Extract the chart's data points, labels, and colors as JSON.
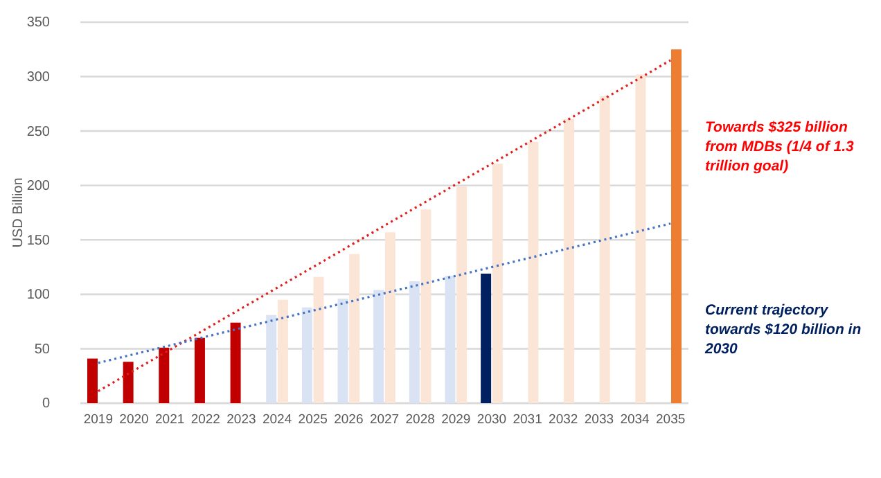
{
  "chart_data": {
    "type": "bar",
    "ylabel": "USD Billion",
    "categories": [
      "2019",
      "2020",
      "2021",
      "2022",
      "2023",
      "2024",
      "2025",
      "2026",
      "2027",
      "2028",
      "2029",
      "2030",
      "2031",
      "2032",
      "2033",
      "2034",
      "2035"
    ],
    "series": [
      {
        "colors": [
          "#c00000",
          "#c00000",
          "#c00000",
          "#c00000",
          "#c00000",
          "#dae3f3",
          "#dae3f3",
          "#dae3f3",
          "#dae3f3",
          "#dae3f3",
          "#dae3f3",
          "#002060",
          null,
          null,
          null,
          null,
          null
        ],
        "values": [
          41,
          38,
          51,
          60,
          74,
          81,
          88,
          96,
          104,
          112,
          117,
          119,
          null,
          null,
          null,
          null,
          null
        ]
      },
      {
        "colors": [
          null,
          null,
          null,
          null,
          null,
          "#fbe5d6",
          "#fbe5d6",
          "#fbe5d6",
          "#fbe5d6",
          "#fbe5d6",
          "#fbe5d6",
          "#fbe5d6",
          "#fbe5d6",
          "#fbe5d6",
          "#fbe5d6",
          "#fbe5d6",
          "#ed7d31"
        ],
        "values": [
          null,
          null,
          null,
          null,
          null,
          95,
          116,
          137,
          157,
          178,
          199,
          220,
          240,
          261,
          282,
          302,
          325
        ]
      },
      {
        "type": "line",
        "color": "#e0201c",
        "line_style": "dotted",
        "values": [
          11,
          30,
          49,
          68,
          87,
          106,
          125,
          144,
          163,
          182,
          201,
          220,
          239,
          258,
          277,
          296,
          315
        ]
      },
      {
        "type": "line",
        "color": "#4472c4",
        "line_style": "dotted",
        "values": [
          37,
          45,
          53,
          61,
          69,
          77,
          85,
          93,
          101,
          109,
          117,
          125,
          133,
          141,
          149,
          157,
          165
        ]
      }
    ],
    "ylim": [
      0,
      350
    ],
    "yticks": [
      0,
      50,
      100,
      150,
      200,
      250,
      300,
      350
    ],
    "grid": "y",
    "annotations": [
      "Towards $325 billion from MDBs (1/4 of 1.3 trillion goal)",
      "Current trajectory towards $120 billion in 2030"
    ]
  }
}
